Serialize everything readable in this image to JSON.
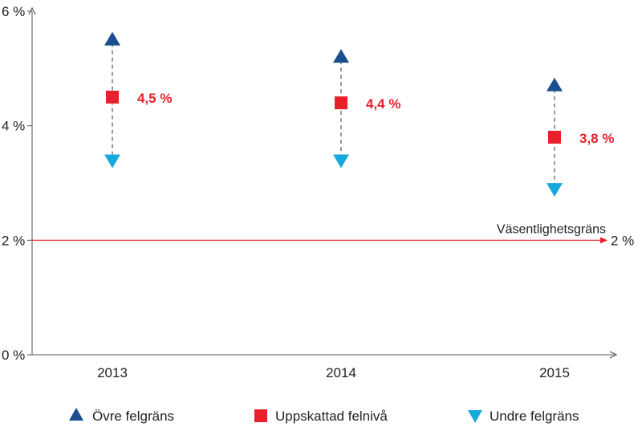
{
  "chart_data": {
    "type": "scatter",
    "title": "",
    "xlabel": "",
    "ylabel": "",
    "categories": [
      "2013",
      "2014",
      "2015"
    ],
    "ylim": [
      0,
      6
    ],
    "yticks": [
      {
        "value": 0,
        "label": "0 %"
      },
      {
        "value": 2,
        "label": "2 %"
      },
      {
        "value": 4,
        "label": "4 %"
      },
      {
        "value": 6,
        "label": "6 %"
      }
    ],
    "grid": false,
    "legend_position": "bottom",
    "series": [
      {
        "name": "Övre felgräns",
        "marker": "triangle-up",
        "color": "#1a4e8c",
        "values": [
          5.5,
          5.2,
          4.7
        ]
      },
      {
        "name": "Uppskattad felnivå",
        "marker": "square",
        "color": "#e8202a",
        "values": [
          4.5,
          4.4,
          3.8
        ],
        "data_labels": [
          "4,5 %",
          "4,4 %",
          "3,8 %"
        ]
      },
      {
        "name": "Undre felgräns",
        "marker": "triangle-down",
        "color": "#17a8dc",
        "values": [
          3.4,
          3.4,
          2.9
        ]
      }
    ],
    "reference_line": {
      "value": 2,
      "label": "Väsentlighetsgräns",
      "end_label": "2 %",
      "color": "#e8202a"
    }
  }
}
